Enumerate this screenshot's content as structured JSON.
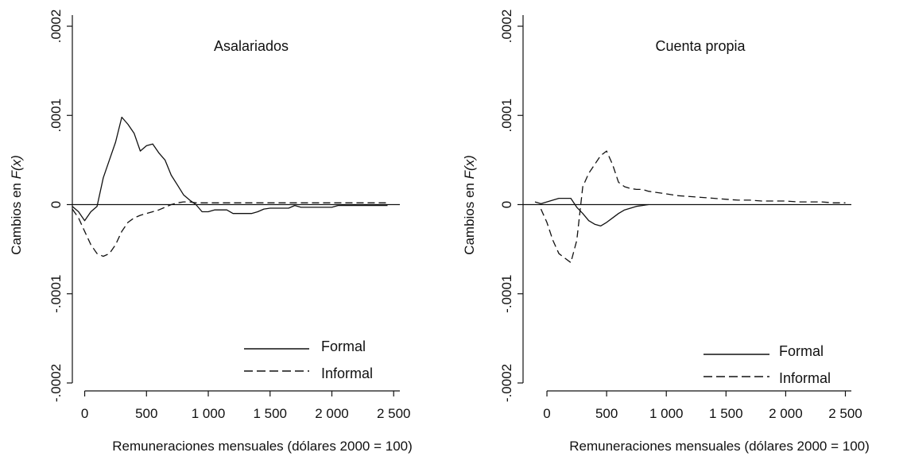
{
  "figure": {
    "background": "#ffffff",
    "line_color": "#111111"
  },
  "chart_data": [
    {
      "type": "line",
      "title": "Asalariados",
      "xlabel": "Remuneraciones mensuales  (dólares 2000 = 100)",
      "ylabel_prefix": "Cambios en ",
      "ylabel_math": "F(x)",
      "xlim": [
        -100,
        2550
      ],
      "ylim": [
        -0.0002,
        0.0002
      ],
      "xticks": [
        0,
        500,
        1000,
        1500,
        2000,
        2500
      ],
      "xtick_labels": [
        "0",
        "500",
        "1 000",
        "1 500",
        "2 000",
        "2 500"
      ],
      "yticks": [
        -0.0002,
        -0.0001,
        0,
        0.0001,
        0.0002
      ],
      "ytick_labels": [
        "-.0002",
        "-.0001",
        "0",
        ".0001",
        ".0002"
      ],
      "zero_line": true,
      "legend_position": "bottom-right",
      "series": [
        {
          "name": "Formal",
          "style": "solid",
          "x": [
            -100,
            -50,
            0,
            50,
            100,
            150,
            200,
            250,
            300,
            350,
            400,
            450,
            500,
            550,
            600,
            650,
            700,
            750,
            800,
            850,
            900,
            950,
            1000,
            1050,
            1100,
            1150,
            1200,
            1250,
            1300,
            1350,
            1400,
            1450,
            1500,
            1550,
            1600,
            1650,
            1700,
            1750,
            1800,
            1850,
            1900,
            1950,
            2000,
            2050,
            2100,
            2150,
            2200,
            2250,
            2300,
            2350,
            2400,
            2450
          ],
          "y": [
            -2e-06,
            -8e-06,
            -1.8e-05,
            -8e-06,
            -2e-06,
            3e-05,
            5e-05,
            7e-05,
            9.8e-05,
            9e-05,
            8e-05,
            6e-05,
            6.6e-05,
            6.8e-05,
            5.8e-05,
            5e-05,
            3.3e-05,
            2.2e-05,
            1.1e-05,
            5e-06,
            0.0,
            -8e-06,
            -8e-06,
            -6e-06,
            -6e-06,
            -6e-06,
            -1e-05,
            -1e-05,
            -1e-05,
            -1e-05,
            -8e-06,
            -5e-06,
            -4e-06,
            -4e-06,
            -4e-06,
            -4e-06,
            -1e-06,
            -3e-06,
            -3e-06,
            -3e-06,
            -3e-06,
            -3e-06,
            -3e-06,
            -1e-06,
            -1e-06,
            -1e-06,
            -1e-06,
            -1e-06,
            -1e-06,
            -1e-06,
            -1e-06,
            -1e-06
          ]
        },
        {
          "name": "Informal",
          "style": "dashed",
          "x": [
            -100,
            -50,
            0,
            50,
            100,
            150,
            200,
            250,
            300,
            350,
            400,
            450,
            500,
            550,
            600,
            650,
            700,
            750,
            800,
            850,
            900,
            950,
            1000,
            1100,
            1200,
            1300,
            1400,
            1500,
            1600,
            1700,
            1800,
            1900,
            2000,
            2100,
            2200,
            2300,
            2400,
            2450
          ],
          "y": [
            -5e-06,
            -1.5e-05,
            -3e-05,
            -4.5e-05,
            -5.5e-05,
            -5.8e-05,
            -5.5e-05,
            -4.5e-05,
            -3e-05,
            -2e-05,
            -1.5e-05,
            -1.2e-05,
            -1e-05,
            -8e-06,
            -6e-06,
            -3e-06,
            0.0,
            2e-06,
            3e-06,
            3e-06,
            2e-06,
            2e-06,
            2e-06,
            2e-06,
            2e-06,
            2e-06,
            2e-06,
            2e-06,
            2e-06,
            2e-06,
            2e-06,
            2e-06,
            2e-06,
            2e-06,
            2e-06,
            2e-06,
            2e-06,
            2e-06
          ]
        }
      ]
    },
    {
      "type": "line",
      "title": "Cuenta propia",
      "xlabel": "Remuneraciones mensuales  (dólares 2000 = 100)",
      "ylabel_prefix": "Cambios en ",
      "ylabel_math": "F(x)",
      "xlim": [
        -200,
        2550
      ],
      "ylim": [
        -0.0002,
        0.0002
      ],
      "xticks": [
        0,
        500,
        1000,
        1500,
        2000,
        2500
      ],
      "xtick_labels": [
        "0",
        "500",
        "1 000",
        "1 500",
        "2 000",
        "2 500"
      ],
      "yticks": [
        -0.0002,
        -0.0001,
        0,
        0.0001,
        0.0002
      ],
      "ytick_labels": [
        "-.0002",
        "-.0001",
        "0",
        ".0001",
        ".0002"
      ],
      "zero_line": true,
      "legend_position": "bottom-right",
      "series": [
        {
          "name": "Formal",
          "style": "solid",
          "x": [
            -100,
            -50,
            0,
            50,
            100,
            150,
            200,
            250,
            300,
            350,
            400,
            450,
            500,
            550,
            600,
            650,
            700,
            750,
            800,
            850
          ],
          "y": [
            3e-06,
            1e-06,
            3e-06,
            5e-06,
            7e-06,
            7e-06,
            7e-06,
            -3e-06,
            -1e-05,
            -1.8e-05,
            -2.2e-05,
            -2.4e-05,
            -2e-05,
            -1.5e-05,
            -1e-05,
            -6e-06,
            -4e-06,
            -2e-06,
            -1e-06,
            0.0
          ]
        },
        {
          "name": "Informal",
          "style": "dashed",
          "x": [
            -50,
            0,
            50,
            100,
            150,
            200,
            250,
            300,
            350,
            400,
            450,
            500,
            550,
            600,
            650,
            700,
            750,
            800,
            850,
            900,
            1000,
            1100,
            1200,
            1300,
            1400,
            1500,
            1600,
            1700,
            1800,
            1900,
            2000,
            2100,
            2200,
            2300,
            2400,
            2500
          ],
          "y": [
            -5e-06,
            -2e-05,
            -4e-05,
            -5.5e-05,
            -6e-05,
            -6.5e-05,
            -4e-05,
            2e-05,
            3.5e-05,
            4.5e-05,
            5.5e-05,
            6e-05,
            4.5e-05,
            2.5e-05,
            2e-05,
            1.8e-05,
            1.7e-05,
            1.7e-05,
            1.5e-05,
            1.4e-05,
            1.2e-05,
            1e-05,
            9e-06,
            8e-06,
            7e-06,
            6e-06,
            5e-06,
            5e-06,
            4e-06,
            4e-06,
            4e-06,
            3e-06,
            3e-06,
            3e-06,
            2e-06,
            2e-06
          ]
        }
      ]
    }
  ]
}
